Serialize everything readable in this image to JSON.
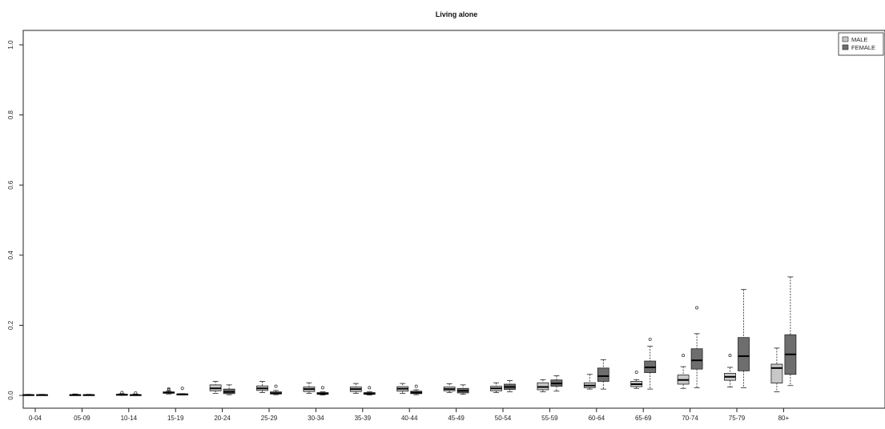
{
  "chart_data": {
    "type": "boxplot",
    "title": "Living alone",
    "xlabel": "",
    "ylabel": "",
    "ylim": [
      0,
      1.0
    ],
    "y_ticks": [
      "0.0",
      "0.2",
      "0.4",
      "0.6",
      "0.8",
      "1.0"
    ],
    "grid": false,
    "legend_position": "top-right",
    "categories": [
      "0-04",
      "05-09",
      "10-14",
      "15-19",
      "20-24",
      "25-29",
      "30-34",
      "35-39",
      "40-44",
      "45-49",
      "50-54",
      "55-59",
      "60-64",
      "65-69",
      "70-74",
      "75-79",
      "80+"
    ],
    "series": [
      {
        "name": "MALE",
        "color": "#c8c8c8",
        "boxes": [
          {
            "min": 0.0,
            "q1": 0.0,
            "median": 0.001,
            "q3": 0.002,
            "max": 0.003,
            "outliers": []
          },
          {
            "min": 0.0,
            "q1": 0.0,
            "median": 0.001,
            "q3": 0.002,
            "max": 0.004,
            "outliers": []
          },
          {
            "min": 0.0,
            "q1": 0.001,
            "median": 0.002,
            "q3": 0.003,
            "max": 0.005,
            "outliers": [
              0.008
            ]
          },
          {
            "min": 0.004,
            "q1": 0.006,
            "median": 0.008,
            "q3": 0.01,
            "max": 0.012,
            "outliers": [
              0.016,
              0.019
            ]
          },
          {
            "min": 0.006,
            "q1": 0.013,
            "median": 0.02,
            "q3": 0.03,
            "max": 0.04,
            "outliers": []
          },
          {
            "min": 0.008,
            "q1": 0.014,
            "median": 0.02,
            "q3": 0.027,
            "max": 0.04,
            "outliers": []
          },
          {
            "min": 0.006,
            "q1": 0.011,
            "median": 0.018,
            "q3": 0.024,
            "max": 0.036,
            "outliers": []
          },
          {
            "min": 0.006,
            "q1": 0.011,
            "median": 0.018,
            "q3": 0.024,
            "max": 0.034,
            "outliers": []
          },
          {
            "min": 0.006,
            "q1": 0.012,
            "median": 0.019,
            "q3": 0.025,
            "max": 0.034,
            "outliers": []
          },
          {
            "min": 0.008,
            "q1": 0.013,
            "median": 0.018,
            "q3": 0.024,
            "max": 0.033,
            "outliers": []
          },
          {
            "min": 0.008,
            "q1": 0.013,
            "median": 0.02,
            "q3": 0.026,
            "max": 0.036,
            "outliers": []
          },
          {
            "min": 0.01,
            "q1": 0.016,
            "median": 0.024,
            "q3": 0.036,
            "max": 0.045,
            "outliers": []
          },
          {
            "min": 0.018,
            "q1": 0.022,
            "median": 0.028,
            "q3": 0.036,
            "max": 0.06,
            "outliers": []
          },
          {
            "min": 0.02,
            "q1": 0.025,
            "median": 0.032,
            "q3": 0.04,
            "max": 0.045,
            "outliers": [
              0.066
            ]
          },
          {
            "min": 0.02,
            "q1": 0.032,
            "median": 0.044,
            "q3": 0.058,
            "max": 0.082,
            "outliers": [
              0.114
            ]
          },
          {
            "min": 0.024,
            "q1": 0.043,
            "median": 0.053,
            "q3": 0.063,
            "max": 0.08,
            "outliers": [
              0.114
            ]
          },
          {
            "min": 0.01,
            "q1": 0.035,
            "median": 0.078,
            "q3": 0.089,
            "max": 0.135,
            "outliers": []
          }
        ]
      },
      {
        "name": "FEMALE",
        "color": "#6e6e6e",
        "boxes": [
          {
            "min": 0.0,
            "q1": 0.0,
            "median": 0.001,
            "q3": 0.002,
            "max": 0.003,
            "outliers": []
          },
          {
            "min": 0.0,
            "q1": 0.0,
            "median": 0.001,
            "q3": 0.002,
            "max": 0.003,
            "outliers": []
          },
          {
            "min": 0.0,
            "q1": 0.0,
            "median": 0.001,
            "q3": 0.002,
            "max": 0.004,
            "outliers": [
              0.007
            ]
          },
          {
            "min": 0.001,
            "q1": 0.002,
            "median": 0.003,
            "q3": 0.004,
            "max": 0.005,
            "outliers": [
              0.02
            ]
          },
          {
            "min": 0.002,
            "q1": 0.005,
            "median": 0.01,
            "q3": 0.018,
            "max": 0.03,
            "outliers": []
          },
          {
            "min": 0.002,
            "q1": 0.004,
            "median": 0.006,
            "q3": 0.01,
            "max": 0.014,
            "outliers": [
              0.026
            ]
          },
          {
            "min": 0.001,
            "q1": 0.003,
            "median": 0.005,
            "q3": 0.008,
            "max": 0.01,
            "outliers": [
              0.022
            ]
          },
          {
            "min": 0.001,
            "q1": 0.003,
            "median": 0.005,
            "q3": 0.008,
            "max": 0.01,
            "outliers": [
              0.022
            ]
          },
          {
            "min": 0.002,
            "q1": 0.005,
            "median": 0.008,
            "q3": 0.012,
            "max": 0.016,
            "outliers": [
              0.026
            ]
          },
          {
            "min": 0.003,
            "q1": 0.007,
            "median": 0.013,
            "q3": 0.02,
            "max": 0.03,
            "outliers": []
          },
          {
            "min": 0.01,
            "q1": 0.017,
            "median": 0.024,
            "q3": 0.032,
            "max": 0.042,
            "outliers": []
          },
          {
            "min": 0.012,
            "q1": 0.026,
            "median": 0.034,
            "q3": 0.044,
            "max": 0.056,
            "outliers": []
          },
          {
            "min": 0.018,
            "q1": 0.04,
            "median": 0.055,
            "q3": 0.078,
            "max": 0.102,
            "outliers": []
          },
          {
            "min": 0.018,
            "q1": 0.065,
            "median": 0.08,
            "q3": 0.098,
            "max": 0.14,
            "outliers": [
              0.16
            ]
          },
          {
            "min": 0.022,
            "q1": 0.075,
            "median": 0.1,
            "q3": 0.133,
            "max": 0.176,
            "outliers": [
              0.25
            ]
          },
          {
            "min": 0.022,
            "q1": 0.07,
            "median": 0.112,
            "q3": 0.165,
            "max": 0.302,
            "outliers": []
          },
          {
            "min": 0.028,
            "q1": 0.06,
            "median": 0.117,
            "q3": 0.173,
            "max": 0.338,
            "outliers": []
          }
        ]
      }
    ]
  }
}
